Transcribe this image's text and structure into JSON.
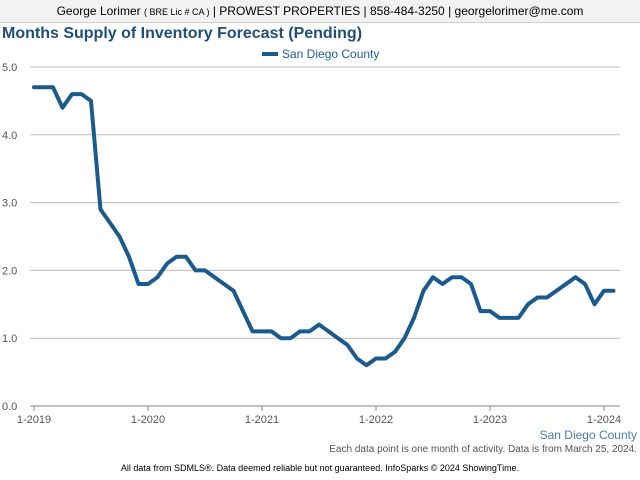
{
  "header": {
    "name": "George Lorimer",
    "license": "( BRE Lic # CA )",
    "rest": "| PROWEST PROPERTIES | 858-484-3250 | georgelorimer@me.com"
  },
  "colors": {
    "series": "#1a5a8c",
    "title": "#1f4e79",
    "grid": "#bdbdbd"
  },
  "series_caption": "San Diego County",
  "note": "Each data point is one month of activity. Data is from March 25, 2024.",
  "footer": "All data from SDMLS®. Data deemed reliable but not guaranteed. InfoSparks © 2024 ShowingTime.",
  "chart_data": {
    "type": "line",
    "title": "Months Supply of Inventory Forecast (Pending)",
    "xlabel": "",
    "ylabel": "",
    "ylim": [
      0,
      5
    ],
    "yticks": [
      "0.0",
      "1.0",
      "2.0",
      "3.0",
      "4.0",
      "5.0"
    ],
    "xticks": [
      "1-2019",
      "1-2020",
      "1-2021",
      "1-2022",
      "1-2023",
      "1-2024"
    ],
    "grid": true,
    "legend": "top-center",
    "series": [
      {
        "name": "San Diego County",
        "x": [
          "2019-01",
          "2019-02",
          "2019-03",
          "2019-04",
          "2019-05",
          "2019-06",
          "2019-07",
          "2019-08",
          "2019-09",
          "2019-10",
          "2019-11",
          "2019-12",
          "2020-01",
          "2020-02",
          "2020-03",
          "2020-04",
          "2020-05",
          "2020-06",
          "2020-07",
          "2020-08",
          "2020-09",
          "2020-10",
          "2020-11",
          "2020-12",
          "2021-01",
          "2021-02",
          "2021-03",
          "2021-04",
          "2021-05",
          "2021-06",
          "2021-07",
          "2021-08",
          "2021-09",
          "2021-10",
          "2021-11",
          "2021-12",
          "2022-01",
          "2022-02",
          "2022-03",
          "2022-04",
          "2022-05",
          "2022-06",
          "2022-07",
          "2022-08",
          "2022-09",
          "2022-10",
          "2022-11",
          "2022-12",
          "2023-01",
          "2023-02",
          "2023-03",
          "2023-04",
          "2023-05",
          "2023-06",
          "2023-07",
          "2023-08",
          "2023-09",
          "2023-10",
          "2023-11",
          "2023-12",
          "2024-01",
          "2024-02"
        ],
        "values": [
          4.7,
          4.7,
          4.7,
          4.4,
          4.6,
          4.6,
          4.5,
          2.9,
          2.7,
          2.5,
          2.2,
          1.8,
          1.8,
          1.9,
          2.1,
          2.2,
          2.2,
          2.0,
          2.0,
          1.9,
          1.8,
          1.7,
          1.4,
          1.1,
          1.1,
          1.1,
          1.0,
          1.0,
          1.1,
          1.1,
          1.2,
          1.1,
          1.0,
          0.9,
          0.7,
          0.6,
          0.7,
          0.7,
          0.8,
          1.0,
          1.3,
          1.7,
          1.9,
          1.8,
          1.9,
          1.9,
          1.8,
          1.4,
          1.4,
          1.3,
          1.3,
          1.3,
          1.5,
          1.6,
          1.6,
          1.7,
          1.8,
          1.9,
          1.8,
          1.5,
          1.7,
          1.7
        ]
      }
    ]
  }
}
